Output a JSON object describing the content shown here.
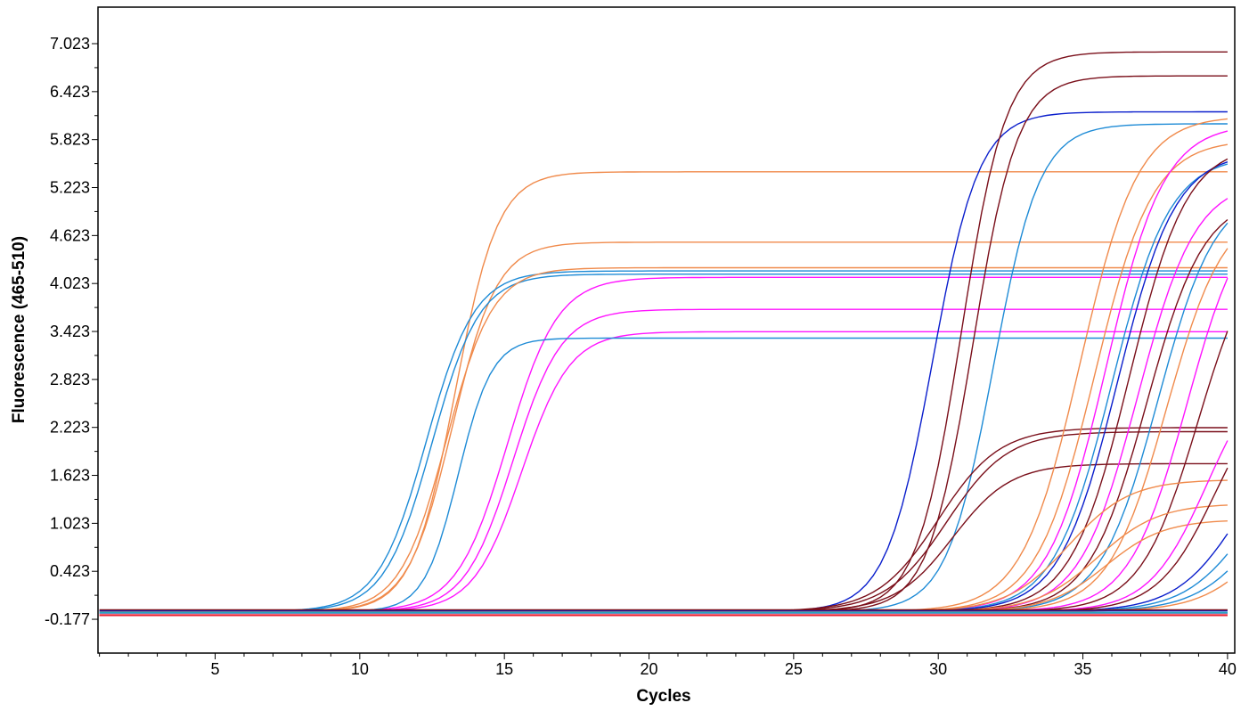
{
  "chart_data": {
    "type": "line",
    "title": "",
    "xlabel": "Cycles",
    "ylabel": "Fluorescence (465-510)",
    "xlim": [
      1,
      40
    ],
    "ylim": [
      -0.6,
      7.48
    ],
    "xticks": [
      5,
      10,
      15,
      20,
      25,
      30,
      35,
      40
    ],
    "yticks": [
      -0.177,
      0.423,
      1.023,
      1.623,
      2.223,
      2.823,
      3.423,
      4.023,
      4.623,
      5.223,
      5.823,
      6.423,
      7.023
    ],
    "ytick_labels": [
      "-0.177",
      "0.423",
      "1.023",
      "1.623",
      "2.223",
      "2.823",
      "3.423",
      "4.023",
      "4.623",
      "5.223",
      "5.823",
      "6.423",
      "7.023"
    ],
    "grid": false,
    "legend": "none",
    "series": [
      {
        "color": "#F08A4B",
        "baseline": -0.08,
        "plateau": 5.5,
        "midpoint": 13.3,
        "slope": 1.35
      },
      {
        "color": "#F08A4B",
        "baseline": -0.08,
        "plateau": 4.62,
        "midpoint": 13.2,
        "slope": 1.3
      },
      {
        "color": "#1E8BD6",
        "baseline": -0.08,
        "plateau": 4.26,
        "midpoint": 12.3,
        "slope": 1.2
      },
      {
        "color": "#1E8BD6",
        "baseline": -0.08,
        "plateau": 4.22,
        "midpoint": 12.5,
        "slope": 1.22
      },
      {
        "color": "#F08A4B",
        "baseline": -0.08,
        "plateau": 4.3,
        "midpoint": 13.0,
        "slope": 1.25
      },
      {
        "color": "#FF14FF",
        "baseline": -0.08,
        "plateau": 4.18,
        "midpoint": 15.1,
        "slope": 1.15
      },
      {
        "color": "#FF14FF",
        "baseline": -0.08,
        "plateau": 3.78,
        "midpoint": 15.3,
        "slope": 1.2
      },
      {
        "color": "#FF14FF",
        "baseline": -0.08,
        "plateau": 3.5,
        "midpoint": 15.6,
        "slope": 1.2
      },
      {
        "color": "#1E8BD6",
        "baseline": -0.08,
        "plateau": 3.42,
        "midpoint": 13.4,
        "slope": 1.7
      },
      {
        "color": "#0A1ECC",
        "baseline": -0.08,
        "plateau": 6.25,
        "midpoint": 29.8,
        "slope": 1.25
      },
      {
        "color": "#7A0F1A",
        "baseline": -0.08,
        "plateau": 7.0,
        "midpoint": 30.8,
        "slope": 1.3
      },
      {
        "color": "#7A0F1A",
        "baseline": -0.08,
        "plateau": 6.7,
        "midpoint": 31.2,
        "slope": 1.3
      },
      {
        "color": "#1E8BD6",
        "baseline": -0.08,
        "plateau": 6.1,
        "midpoint": 31.9,
        "slope": 1.25
      },
      {
        "color": "#7A0F1A",
        "baseline": -0.08,
        "plateau": 2.3,
        "midpoint": 30.0,
        "slope": 0.95
      },
      {
        "color": "#7A0F1A",
        "baseline": -0.08,
        "plateau": 2.25,
        "midpoint": 30.3,
        "slope": 0.95
      },
      {
        "color": "#7A0F1A",
        "baseline": -0.08,
        "plateau": 1.85,
        "midpoint": 30.5,
        "slope": 1.0
      },
      {
        "color": "#F08A4B",
        "baseline": -0.08,
        "plateau": 6.2,
        "midpoint": 34.9,
        "slope": 1.0
      },
      {
        "color": "#F08A4B",
        "baseline": -0.08,
        "plateau": 5.9,
        "midpoint": 35.4,
        "slope": 1.0
      },
      {
        "color": "#FF14FF",
        "baseline": -0.08,
        "plateau": 6.1,
        "midpoint": 35.8,
        "slope": 1.0
      },
      {
        "color": "#1E8BD6",
        "baseline": -0.08,
        "plateau": 5.7,
        "midpoint": 36.0,
        "slope": 1.0
      },
      {
        "color": "#0A1ECC",
        "baseline": -0.08,
        "plateau": 5.75,
        "midpoint": 36.2,
        "slope": 1.0
      },
      {
        "color": "#7A0F1A",
        "baseline": -0.08,
        "plateau": 5.85,
        "midpoint": 36.6,
        "slope": 1.0
      },
      {
        "color": "#FF14FF",
        "baseline": -0.08,
        "plateau": 5.4,
        "midpoint": 36.9,
        "slope": 1.0
      },
      {
        "color": "#7A0F1A",
        "baseline": -0.08,
        "plateau": 5.2,
        "midpoint": 37.2,
        "slope": 1.0
      },
      {
        "color": "#1E8BD6",
        "baseline": -0.08,
        "plateau": 5.3,
        "midpoint": 37.6,
        "slope": 1.0
      },
      {
        "color": "#F08A4B",
        "baseline": -0.08,
        "plateau": 5.1,
        "midpoint": 37.9,
        "slope": 1.0
      },
      {
        "color": "#FF14FF",
        "baseline": -0.08,
        "plateau": 5.2,
        "midpoint": 38.6,
        "slope": 1.0
      },
      {
        "color": "#7A0F1A",
        "baseline": -0.08,
        "plateau": 4.8,
        "midpoint": 39.0,
        "slope": 1.0
      },
      {
        "color": "#F08A4B",
        "baseline": -0.08,
        "plateau": 1.65,
        "midpoint": 34.5,
        "slope": 0.95
      },
      {
        "color": "#F08A4B",
        "baseline": -0.08,
        "plateau": 1.35,
        "midpoint": 35.5,
        "slope": 0.95
      },
      {
        "color": "#F08A4B",
        "baseline": -0.08,
        "plateau": 1.15,
        "midpoint": 35.8,
        "slope": 1.0
      },
      {
        "color": "#FF14FF",
        "baseline": -0.08,
        "plateau": 3.2,
        "midpoint": 39.3,
        "slope": 1.0
      },
      {
        "color": "#7A0F1A",
        "baseline": -0.08,
        "plateau": 3.0,
        "midpoint": 39.6,
        "slope": 1.0
      },
      {
        "color": "#0A1ECC",
        "baseline": -0.08,
        "plateau": 2.5,
        "midpoint": 40.5,
        "slope": 0.9
      },
      {
        "color": "#1E8BD6",
        "baseline": -0.08,
        "plateau": 2.2,
        "midpoint": 40.8,
        "slope": 0.9
      },
      {
        "color": "#1E8BD6",
        "baseline": -0.08,
        "plateau": 2.0,
        "midpoint": 41.2,
        "slope": 0.9
      },
      {
        "color": "#F08A4B",
        "baseline": -0.08,
        "plateau": 1.8,
        "midpoint": 41.5,
        "slope": 0.9
      },
      {
        "color": "#7A0F1A",
        "baseline": -0.1,
        "plateau": 0.0,
        "midpoint": 20,
        "slope": 1
      },
      {
        "color": "#FF14FF",
        "baseline": -0.11,
        "plateau": 0.0,
        "midpoint": 20,
        "slope": 1
      },
      {
        "color": "#1E8BD6",
        "baseline": -0.09,
        "plateau": 0.0,
        "midpoint": 20,
        "slope": 1
      },
      {
        "color": "#F08A4B",
        "baseline": -0.12,
        "plateau": 0.0,
        "midpoint": 20,
        "slope": 1
      },
      {
        "color": "#E8122D",
        "baseline": -0.13,
        "plateau": 0.0,
        "midpoint": 20,
        "slope": 1
      },
      {
        "color": "#0A1ECC",
        "baseline": -0.07,
        "plateau": 0.0,
        "midpoint": 20,
        "slope": 1
      },
      {
        "color": "#2DB8B0",
        "baseline": -0.1,
        "plateau": 0.0,
        "midpoint": 20,
        "slope": 1
      },
      {
        "color": "#7A0F1A",
        "baseline": -0.06,
        "plateau": 0.0,
        "midpoint": 20,
        "slope": 1
      }
    ]
  }
}
